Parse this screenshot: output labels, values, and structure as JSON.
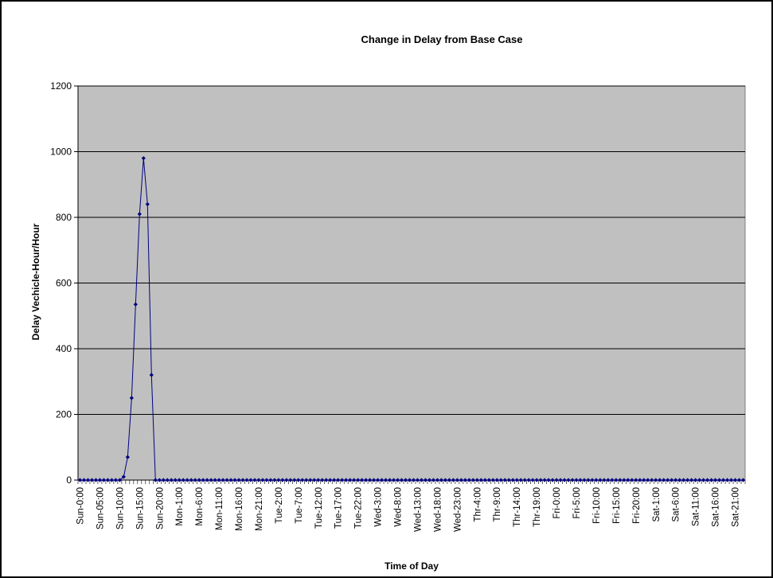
{
  "chart_data": {
    "type": "line",
    "title": "Change in Delay from Base Case",
    "xlabel": "Time of Day",
    "ylabel": "Delay Vechicle-Hour/Hour",
    "ylim": [
      0,
      1200
    ],
    "yticks": [
      0,
      200,
      400,
      600,
      800,
      1000,
      1200
    ],
    "grid": "horizontal",
    "legend": "none",
    "x_tick_labels": [
      "Sun-0:00",
      "Sun-05:00",
      "Sun-10:00",
      "Sun-15:00",
      "Sun-20:00",
      "Mon-1:00",
      "Mon-6:00",
      "Mon-11:00",
      "Mon-16:00",
      "Mon-21:00",
      "Tue-2:00",
      "Tue-7:00",
      "Tue-12:00",
      "Tue-17:00",
      "Tue-22:00",
      "Wed-3:00",
      "Wed-8:00",
      "Wed-13:00",
      "Wed-18:00",
      "Wed-23:00",
      "Thr-4:00",
      "Thr-9:00",
      "Thr-14:00",
      "Thr-19:00",
      "Fri-0:00",
      "Fri-5:00",
      "Fri-10:00",
      "Fri-15:00",
      "Fri-20:00",
      "Sat-1:00",
      "Sat-6:00",
      "Sat-11:00",
      "Sat-16:00",
      "Sat-21:00"
    ],
    "x_tick_interval_hours": 5,
    "total_hours": 168,
    "series": [
      {
        "values_by_hour": [
          0,
          0,
          0,
          0,
          0,
          0,
          0,
          0,
          0,
          0,
          0,
          10,
          70,
          250,
          535,
          810,
          980,
          840,
          320,
          0
        ],
        "remaining_hours_value": 0
      }
    ],
    "colors": {
      "plot_bg": "#c0c0c0",
      "line": "#000080",
      "grid": "#000000"
    }
  }
}
